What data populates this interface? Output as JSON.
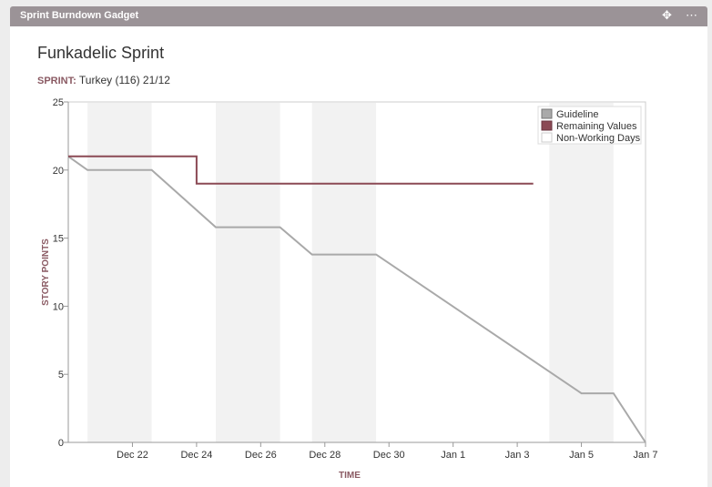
{
  "gadget": {
    "title": "Sprint Burndown Gadget",
    "move_icon": "move-icon",
    "more_icon": "more-icon"
  },
  "sprint": {
    "name": "Funkadelic Sprint",
    "label": "SPRINT:",
    "value": "Turkey (116) 21/12"
  },
  "colors": {
    "header": "#9b9397",
    "guideline": "#a9a9a9",
    "remaining": "#8b4a55",
    "nonworking": "#f2f2f2",
    "axis_title": "#8a5a63"
  },
  "chart_data": {
    "type": "line",
    "title": "",
    "xlabel": "TIME",
    "ylabel": "STORY POINTS",
    "ylim": [
      0,
      25
    ],
    "xlim": [
      "Dec 20",
      "Jan 7"
    ],
    "yticks": [
      0,
      5,
      10,
      15,
      20,
      25
    ],
    "xticks": [
      "Dec 22",
      "Dec 24",
      "Dec 26",
      "Dec 28",
      "Dec 30",
      "Jan 1",
      "Jan 3",
      "Jan 5",
      "Jan 7"
    ],
    "legend": {
      "position": "top-right",
      "entries": [
        "Guideline",
        "Remaining Values",
        "Non-Working Days"
      ]
    },
    "series": [
      {
        "name": "Guideline",
        "x": [
          "Dec 20",
          "Dec 20.6",
          "Dec 22.6",
          "Dec 24.6",
          "Dec 26.6",
          "Dec 27.6",
          "Dec 29.6",
          "Jan 5",
          "Jan 6",
          "Jan 7"
        ],
        "values": [
          21,
          20,
          20,
          15.8,
          15.8,
          13.8,
          13.8,
          3.6,
          3.6,
          0
        ]
      },
      {
        "name": "Remaining Values",
        "x": [
          "Dec 20",
          "Dec 24",
          "Dec 24",
          "Jan 3.5"
        ],
        "values": [
          21,
          21,
          19,
          19
        ]
      }
    ],
    "non_working_days": [
      [
        "Dec 20.6",
        "Dec 22.6"
      ],
      [
        "Dec 24.6",
        "Dec 26.6"
      ],
      [
        "Dec 27.6",
        "Dec 29.6"
      ],
      [
        "Jan 4",
        "Jan 6"
      ]
    ]
  }
}
